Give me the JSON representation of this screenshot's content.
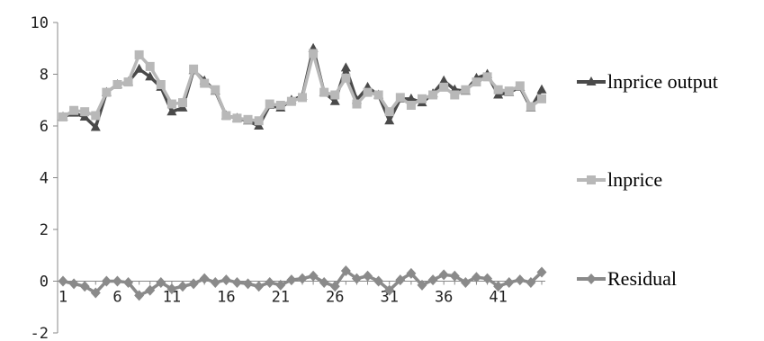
{
  "chart_data": {
    "type": "line",
    "x_start": 1,
    "x_end": 45,
    "x_tick_values": [
      1,
      6,
      11,
      16,
      21,
      26,
      31,
      36,
      41
    ],
    "x_tick_labels": [
      "1",
      "6",
      "11",
      "16",
      "21",
      "26",
      "31",
      "36",
      "41"
    ],
    "ylim": [
      -2,
      10
    ],
    "y_ticks": [
      -2,
      0,
      2,
      4,
      6,
      8,
      10
    ],
    "y_tick_labels": [
      "-2",
      "0",
      "2",
      "4",
      "6",
      "8",
      "10"
    ],
    "grid": false,
    "legend_position": "right",
    "series": [
      {
        "name": "lnprice output",
        "color": "#4a4a4a",
        "marker": "triangle",
        "values": [
          6.35,
          6.5,
          6.35,
          5.95,
          7.3,
          7.6,
          7.7,
          8.2,
          7.9,
          7.5,
          6.55,
          6.7,
          8.15,
          7.75,
          7.35,
          6.4,
          6.3,
          6.2,
          6.0,
          6.8,
          6.7,
          7.0,
          7.15,
          9.0,
          7.3,
          6.95,
          8.25,
          7.0,
          7.5,
          7.2,
          6.2,
          7.05,
          7.05,
          6.9,
          7.25,
          7.75,
          7.4,
          7.35,
          7.85,
          8.0,
          7.2,
          7.3,
          7.5,
          6.7,
          7.4
        ]
      },
      {
        "name": "lnprice",
        "color": "#b8b8b8",
        "marker": "square",
        "values": [
          6.35,
          6.6,
          6.55,
          6.4,
          7.3,
          7.6,
          7.7,
          8.75,
          8.3,
          7.6,
          6.85,
          6.9,
          8.2,
          7.65,
          7.4,
          6.4,
          6.3,
          6.25,
          6.2,
          6.85,
          6.8,
          6.95,
          7.1,
          8.8,
          7.3,
          7.2,
          7.85,
          6.85,
          7.3,
          7.2,
          6.55,
          7.1,
          6.8,
          7.05,
          7.2,
          7.5,
          7.2,
          7.4,
          7.7,
          7.9,
          7.4,
          7.35,
          7.55,
          6.75,
          7.05
        ]
      },
      {
        "name": "Residual",
        "color": "#8a8a8a",
        "marker": "diamond",
        "values": [
          0.0,
          -0.1,
          -0.2,
          -0.45,
          0.0,
          0.0,
          -0.05,
          -0.55,
          -0.35,
          -0.05,
          -0.3,
          -0.2,
          -0.1,
          0.1,
          -0.05,
          0.05,
          -0.05,
          -0.1,
          -0.2,
          -0.05,
          -0.15,
          0.05,
          0.1,
          0.2,
          -0.05,
          -0.2,
          0.4,
          0.1,
          0.2,
          0.0,
          -0.35,
          0.05,
          0.3,
          -0.15,
          0.05,
          0.25,
          0.2,
          -0.05,
          0.15,
          0.1,
          -0.2,
          -0.05,
          0.05,
          -0.05,
          0.35
        ]
      }
    ]
  }
}
